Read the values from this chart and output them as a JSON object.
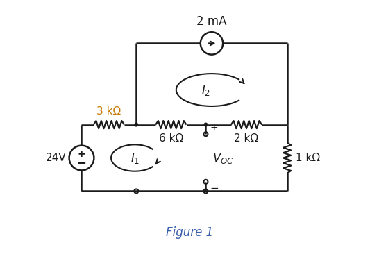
{
  "fig_width": 5.46,
  "fig_height": 3.89,
  "dpi": 100,
  "bg_color": "#ffffff",
  "line_color": "#1a1a1a",
  "text_color": "#1a1a1a",
  "orange_color": "#c87800",
  "blue_color": "#3a5faa",
  "figure_label": "Figure 1",
  "label_24V": "24V",
  "label_3k": "3 kΩ",
  "label_6k": "6 kΩ",
  "label_2k": "2 kΩ",
  "label_1k": "1 kΩ",
  "label_2mA": "2 mA"
}
